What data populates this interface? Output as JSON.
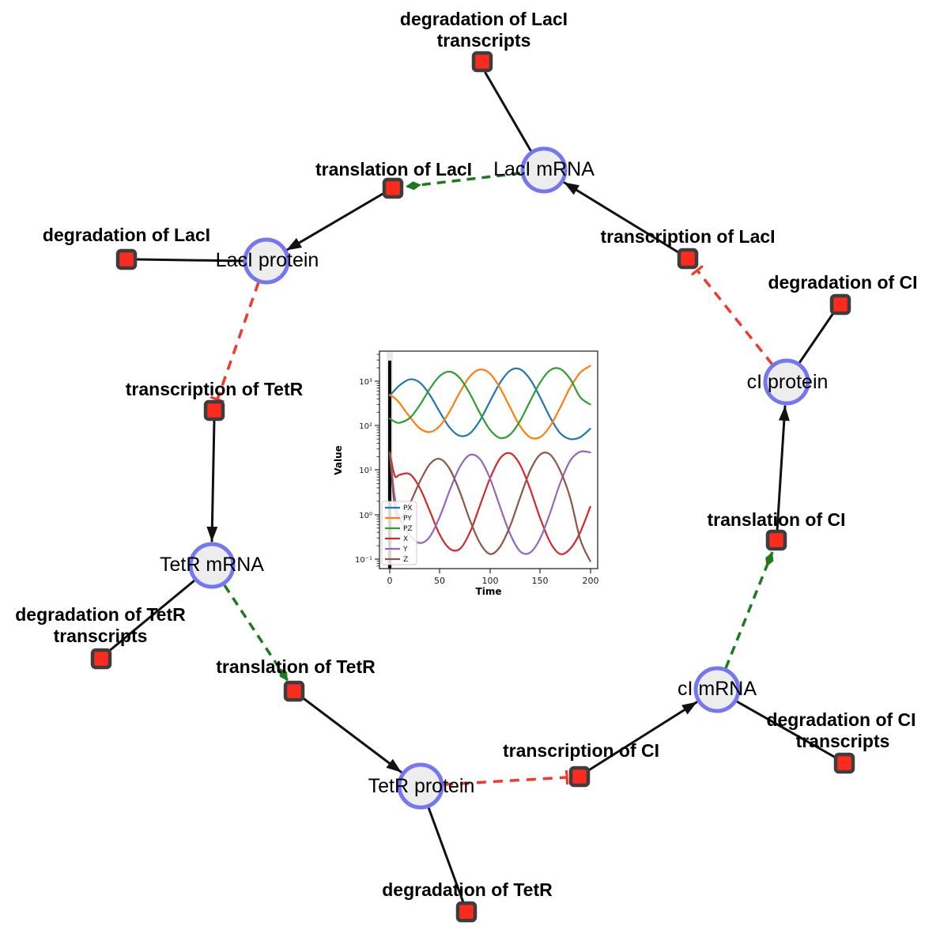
{
  "colors": {
    "background": "#ffffff",
    "species_fill": "#ededed",
    "species_stroke": "#7476f2",
    "reaction_fill": "#fb2b1e",
    "reaction_stroke": "#3d3d3d",
    "activation_green": "#1d7a1d",
    "inhibition_red": "#f2392c",
    "edge_black": "#111111"
  },
  "diagram": {
    "species": [
      {
        "id": "laci-mrna",
        "label": "LacI mRNA"
      },
      {
        "id": "laci-protein",
        "label": "LacI protein"
      },
      {
        "id": "tetr-mrna",
        "label": "TetR mRNA"
      },
      {
        "id": "tetr-protein",
        "label": "TetR protein"
      },
      {
        "id": "ci-mrna",
        "label": "cI mRNA"
      },
      {
        "id": "ci-protein",
        "label": "cI protein"
      }
    ],
    "reactions": [
      {
        "id": "degradation-laci-transcripts",
        "line1": "degradation of LacI",
        "line2": "transcripts"
      },
      {
        "id": "translation-laci",
        "line1": "translation of LacI"
      },
      {
        "id": "degradation-laci",
        "line1": "degradation of LacI"
      },
      {
        "id": "transcription-laci",
        "line1": "transcription of LacI"
      },
      {
        "id": "degradation-ci",
        "line1": "degradation of CI"
      },
      {
        "id": "transcription-tetr",
        "line1": "transcription of TetR"
      },
      {
        "id": "degradation-tetr-transcripts",
        "line1": "degradation of TetR",
        "line2": "transcripts"
      },
      {
        "id": "translation-tetr",
        "line1": "translation of TetR"
      },
      {
        "id": "degradation-tetr",
        "line1": "degradation of TetR"
      },
      {
        "id": "transcription-ci",
        "line1": "transcription of CI"
      },
      {
        "id": "degradation-ci-transcripts",
        "line1": "degradation of CI",
        "line2": "transcripts"
      },
      {
        "id": "translation-ci",
        "line1": "translation of CI"
      }
    ],
    "edges": [
      {
        "source": "laci-mrna",
        "target": "degradation-laci-transcripts",
        "type": "plain"
      },
      {
        "source": "laci-protein",
        "target": "degradation-laci",
        "type": "plain"
      },
      {
        "source": "ci-protein",
        "target": "degradation-ci",
        "type": "plain"
      },
      {
        "source": "ci-mrna",
        "target": "degradation-ci-transcripts",
        "type": "plain"
      },
      {
        "source": "tetr-mrna",
        "target": "degradation-tetr-transcripts",
        "type": "plain"
      },
      {
        "source": "tetr-protein",
        "target": "degradation-tetr",
        "type": "plain"
      },
      {
        "source": "translation-laci",
        "target": "laci-protein",
        "type": "arrow"
      },
      {
        "source": "transcription-laci",
        "target": "laci-mrna",
        "type": "arrow"
      },
      {
        "source": "transcription-tetr",
        "target": "tetr-mrna",
        "type": "arrow"
      },
      {
        "source": "translation-tetr",
        "target": "tetr-protein",
        "type": "arrow"
      },
      {
        "source": "transcription-ci",
        "target": "ci-mrna",
        "type": "arrow"
      },
      {
        "source": "translation-ci",
        "target": "ci-protein",
        "type": "arrow"
      },
      {
        "source": "laci-mrna",
        "target": "translation-laci",
        "type": "activation"
      },
      {
        "source": "tetr-mrna",
        "target": "translation-tetr",
        "type": "activation"
      },
      {
        "source": "ci-mrna",
        "target": "translation-ci",
        "type": "activation"
      },
      {
        "source": "laci-protein",
        "target": "transcription-tetr",
        "type": "inhibition"
      },
      {
        "source": "ci-protein",
        "target": "transcription-laci",
        "type": "inhibition"
      },
      {
        "source": "tetr-protein",
        "target": "transcription-ci",
        "type": "inhibition"
      }
    ]
  },
  "chart_data": {
    "type": "line",
    "title": "",
    "xlabel": "Time",
    "ylabel": "Value",
    "yscale": "log",
    "xlim": [
      -10,
      208
    ],
    "ylim": [
      0.062,
      5100
    ],
    "grid": false,
    "legend_position": "lower left",
    "xticks": [
      "0",
      "50",
      "100",
      "150",
      "200"
    ],
    "xtick_values": [
      0,
      50,
      100,
      150,
      200
    ],
    "ytick_labels": [
      "10³",
      "10²",
      "10¹",
      "10⁰",
      "10⁻¹"
    ],
    "ytick_values": [
      1000,
      100,
      10,
      1,
      0.1
    ],
    "annotations": [
      {
        "type": "vline",
        "x": 0,
        "color": "#000000"
      }
    ],
    "x": [
      0,
      5,
      10,
      20,
      30,
      40,
      50,
      60,
      70,
      80,
      90,
      100,
      110,
      120,
      130,
      140,
      150,
      160,
      170,
      180,
      190,
      200
    ],
    "series": [
      {
        "name": "PX",
        "color": "#1f77b4",
        "values": [
          475,
          628,
          816,
          1100,
          929,
          489,
          201,
          89,
          59,
          67,
          131,
          352,
          919,
          1730,
          1854,
          1103,
          434,
          153,
          68,
          50,
          55,
          85
        ]
      },
      {
        "name": "PY",
        "color": "#ff7f0e",
        "values": [
          490,
          416,
          316,
          157,
          87,
          72,
          99,
          215,
          566,
          1277,
          1836,
          1479,
          709,
          257,
          98,
          55,
          55,
          98,
          255,
          718,
          1556,
          2200
        ]
      },
      {
        "name": "PZ",
        "color": "#2ca02c",
        "values": [
          145,
          123,
          116,
          149,
          291,
          674,
          1314,
          1637,
          1168,
          521,
          191,
          81,
          53,
          63,
          128,
          353,
          934,
          1767,
          1887,
          1120,
          437,
          300
        ]
      },
      {
        "name": "X",
        "color": "#d62728",
        "values": [
          25,
          7.5,
          7.9,
          8.1,
          4.0,
          1.2,
          0.35,
          0.17,
          0.17,
          0.4,
          1.6,
          6.5,
          18.3,
          24.0,
          13.3,
          3.8,
          0.84,
          0.24,
          0.13,
          0.17,
          0.4,
          1.5
        ]
      },
      {
        "name": "Y",
        "color": "#9467bd",
        "values": [
          25,
          2.5,
          0.84,
          0.35,
          0.23,
          0.32,
          0.91,
          3.6,
          12.0,
          22.0,
          17.7,
          6.5,
          1.5,
          0.37,
          0.15,
          0.14,
          0.29,
          1.1,
          5.1,
          16.3,
          26,
          25
        ]
      },
      {
        "name": "Z",
        "color": "#8c564b",
        "values": [
          25,
          1.5,
          0.78,
          1.78,
          5.5,
          13.7,
          17.9,
          10.4,
          3.2,
          0.75,
          0.23,
          0.13,
          0.19,
          0.55,
          2.4,
          9.7,
          22.3,
          22.4,
          9.7,
          2.4,
          0.28,
          0.09
        ]
      }
    ]
  }
}
